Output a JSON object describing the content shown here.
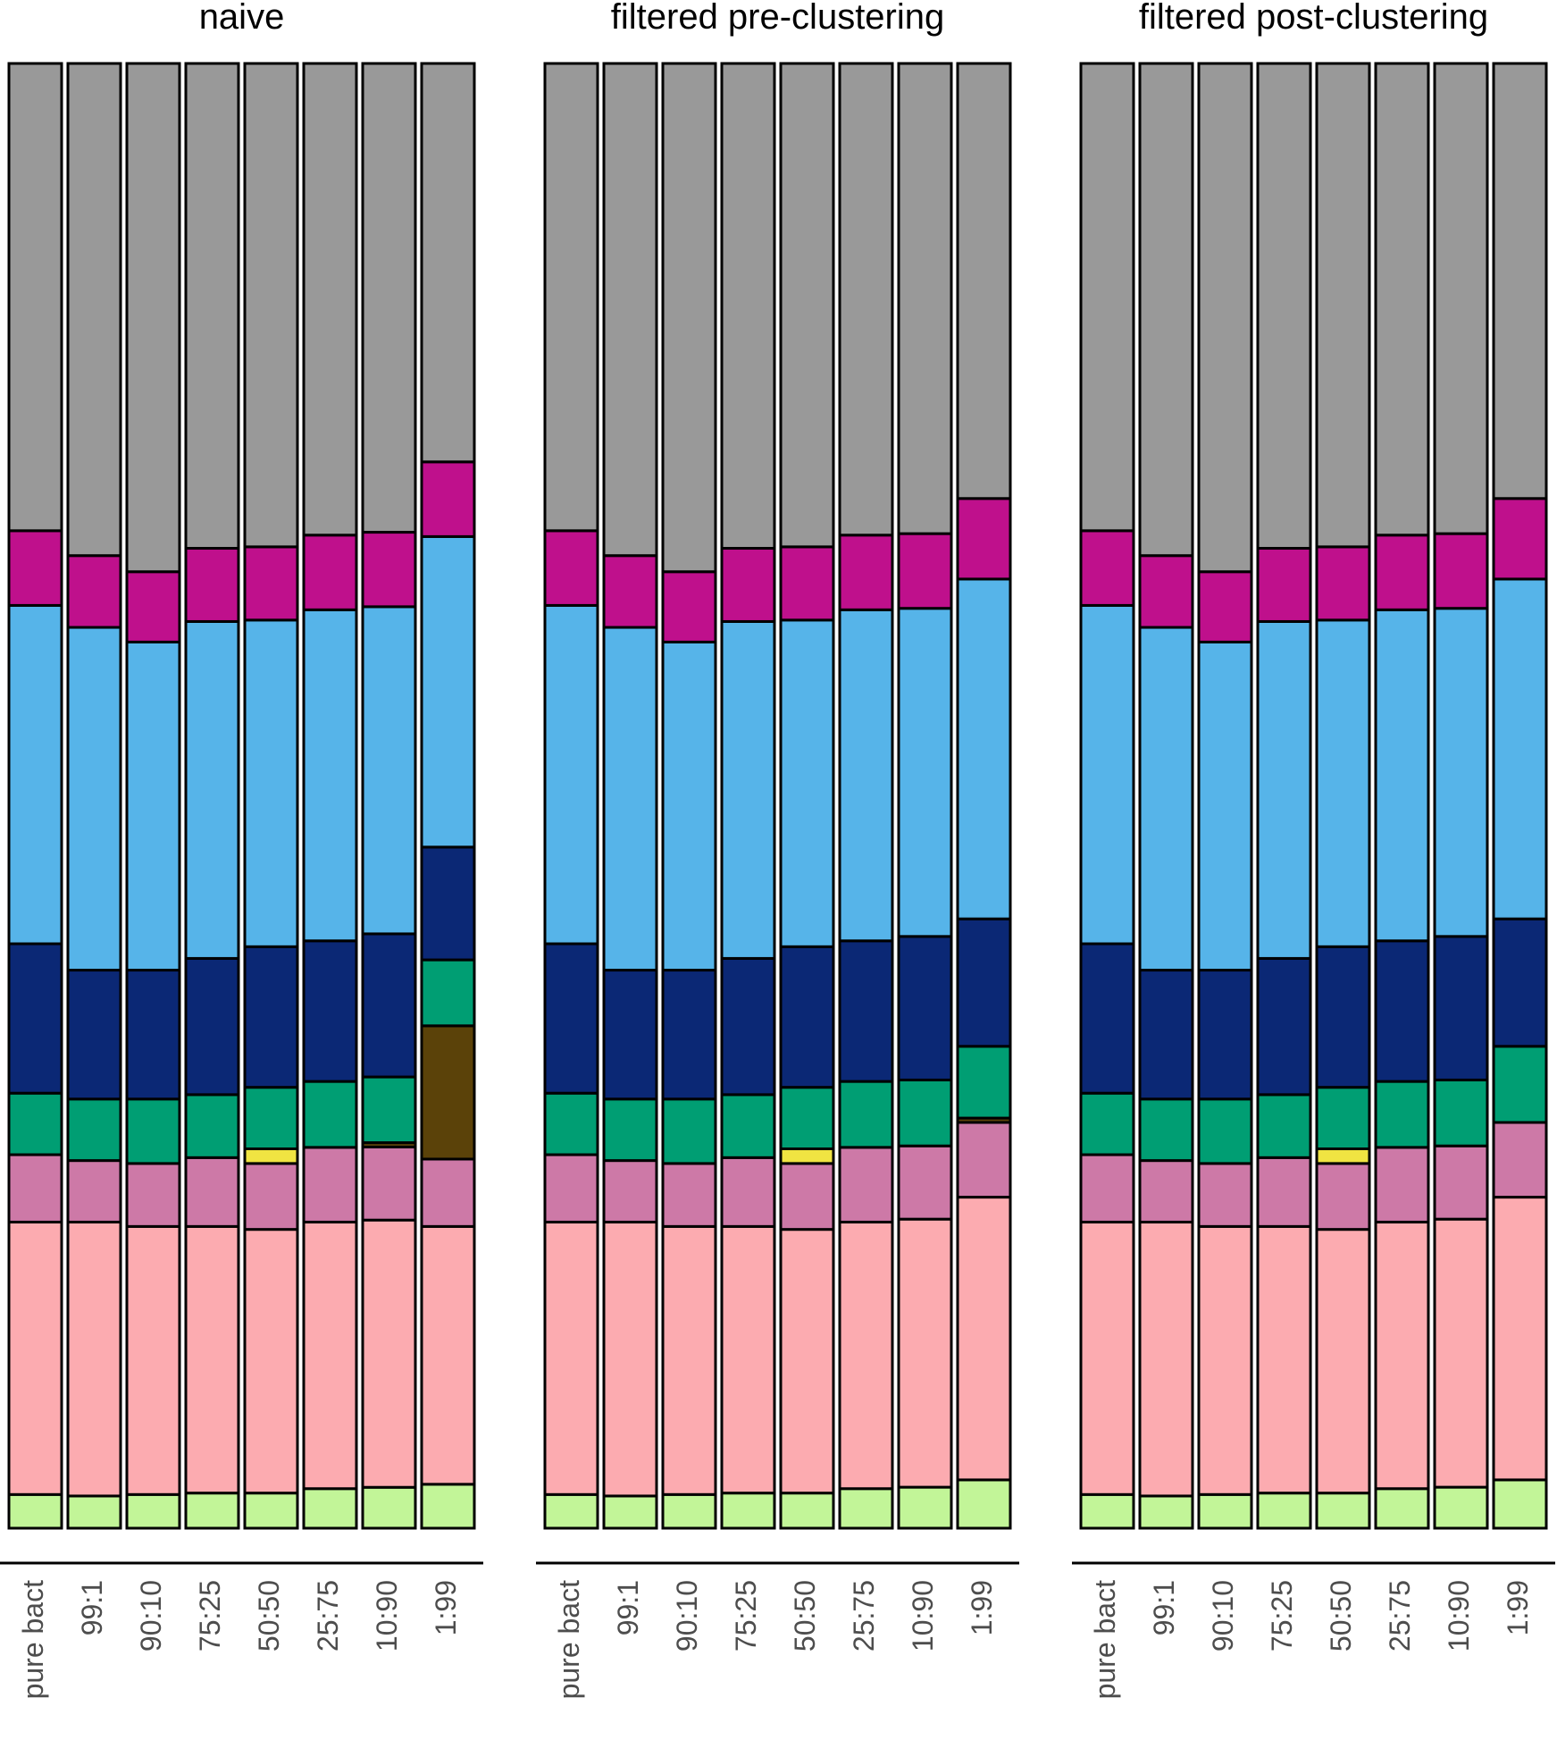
{
  "chart_data": [
    {
      "type": "bar",
      "stacked": true,
      "normalized": true,
      "title": "naive",
      "xlabel": "",
      "ylabel": "",
      "ylim": [
        0,
        1
      ],
      "categories": [
        "pure bact",
        "99:1",
        "90:10",
        "75:25",
        "50:50",
        "25:75",
        "10:90",
        "1:99"
      ],
      "series": [
        {
          "color": "#c2f598",
          "values": [
            0.023,
            0.022,
            0.023,
            0.024,
            0.024,
            0.027,
            0.028,
            0.03
          ]
        },
        {
          "color": "#fcabb0",
          "values": [
            0.186,
            0.187,
            0.183,
            0.182,
            0.18,
            0.182,
            0.183,
            0.176
          ]
        },
        {
          "color": "#cd79a7",
          "values": [
            0.046,
            0.042,
            0.043,
            0.047,
            0.045,
            0.051,
            0.05,
            0.046
          ]
        },
        {
          "color": "#f0e442",
          "values": [
            0,
            0,
            0,
            0,
            0.01,
            0,
            0,
            0
          ]
        },
        {
          "color": "#5b4209",
          "values": [
            0,
            0,
            0,
            0,
            0,
            0,
            0.003,
            0.091
          ]
        },
        {
          "color": "#009e73",
          "values": [
            0.042,
            0.042,
            0.044,
            0.043,
            0.042,
            0.045,
            0.045,
            0.045
          ]
        },
        {
          "color": "#0b2875",
          "values": [
            0.102,
            0.088,
            0.088,
            0.093,
            0.096,
            0.096,
            0.098,
            0.077
          ]
        },
        {
          "color": "#56b4e9",
          "values": [
            0.231,
            0.234,
            0.224,
            0.23,
            0.223,
            0.226,
            0.224,
            0.212
          ]
        },
        {
          "color": "#bf108c",
          "values": [
            0.051,
            0.049,
            0.048,
            0.05,
            0.05,
            0.051,
            0.051,
            0.051
          ]
        },
        {
          "color": "#999999",
          "values": [
            0.319,
            0.336,
            0.347,
            0.331,
            0.33,
            0.322,
            0.321,
            0.272
          ]
        }
      ]
    },
    {
      "type": "bar",
      "stacked": true,
      "normalized": true,
      "title": "filtered pre-clustering",
      "xlabel": "",
      "ylabel": "",
      "ylim": [
        0,
        1
      ],
      "categories": [
        "pure bact",
        "99:1",
        "90:10",
        "75:25",
        "50:50",
        "25:75",
        "10:90",
        "1:99"
      ],
      "series": [
        {
          "color": "#c2f598",
          "values": [
            0.023,
            0.022,
            0.023,
            0.024,
            0.024,
            0.027,
            0.028,
            0.033
          ]
        },
        {
          "color": "#fcabb0",
          "values": [
            0.186,
            0.187,
            0.183,
            0.182,
            0.18,
            0.182,
            0.183,
            0.193
          ]
        },
        {
          "color": "#cd79a7",
          "values": [
            0.046,
            0.042,
            0.043,
            0.047,
            0.045,
            0.051,
            0.05,
            0.051
          ]
        },
        {
          "color": "#f0e442",
          "values": [
            0,
            0,
            0,
            0,
            0.01,
            0,
            0,
            0
          ]
        },
        {
          "color": "#5b4209",
          "values": [
            0,
            0,
            0,
            0,
            0,
            0,
            0,
            0.003
          ]
        },
        {
          "color": "#009e73",
          "values": [
            0.042,
            0.042,
            0.044,
            0.043,
            0.042,
            0.045,
            0.045,
            0.049
          ]
        },
        {
          "color": "#0b2875",
          "values": [
            0.102,
            0.088,
            0.088,
            0.093,
            0.096,
            0.096,
            0.098,
            0.087
          ]
        },
        {
          "color": "#56b4e9",
          "values": [
            0.231,
            0.234,
            0.224,
            0.23,
            0.223,
            0.226,
            0.224,
            0.232
          ]
        },
        {
          "color": "#bf108c",
          "values": [
            0.051,
            0.049,
            0.048,
            0.05,
            0.05,
            0.051,
            0.051,
            0.055
          ]
        },
        {
          "color": "#999999",
          "values": [
            0.319,
            0.336,
            0.347,
            0.331,
            0.33,
            0.322,
            0.321,
            0.297
          ]
        }
      ]
    },
    {
      "type": "bar",
      "stacked": true,
      "normalized": true,
      "title": "filtered post-clustering",
      "xlabel": "",
      "ylabel": "",
      "ylim": [
        0,
        1
      ],
      "categories": [
        "pure bact",
        "99:1",
        "90:10",
        "75:25",
        "50:50",
        "25:75",
        "10:90",
        "1:99"
      ],
      "series": [
        {
          "color": "#c2f598",
          "values": [
            0.023,
            0.022,
            0.023,
            0.024,
            0.024,
            0.027,
            0.028,
            0.033
          ]
        },
        {
          "color": "#fcabb0",
          "values": [
            0.186,
            0.187,
            0.183,
            0.182,
            0.18,
            0.182,
            0.183,
            0.193
          ]
        },
        {
          "color": "#cd79a7",
          "values": [
            0.046,
            0.042,
            0.043,
            0.047,
            0.045,
            0.051,
            0.05,
            0.051
          ]
        },
        {
          "color": "#f0e442",
          "values": [
            0,
            0,
            0,
            0,
            0.01,
            0,
            0,
            0
          ]
        },
        {
          "color": "#5b4209",
          "values": [
            0,
            0,
            0,
            0,
            0,
            0,
            0,
            0
          ]
        },
        {
          "color": "#009e73",
          "values": [
            0.042,
            0.042,
            0.044,
            0.043,
            0.042,
            0.045,
            0.045,
            0.052
          ]
        },
        {
          "color": "#0b2875",
          "values": [
            0.102,
            0.088,
            0.088,
            0.093,
            0.096,
            0.096,
            0.098,
            0.087
          ]
        },
        {
          "color": "#56b4e9",
          "values": [
            0.231,
            0.234,
            0.224,
            0.23,
            0.223,
            0.226,
            0.224,
            0.232
          ]
        },
        {
          "color": "#bf108c",
          "values": [
            0.051,
            0.049,
            0.048,
            0.05,
            0.05,
            0.051,
            0.051,
            0.055
          ]
        },
        {
          "color": "#999999",
          "values": [
            0.319,
            0.336,
            0.347,
            0.331,
            0.33,
            0.322,
            0.321,
            0.297
          ]
        }
      ]
    }
  ]
}
